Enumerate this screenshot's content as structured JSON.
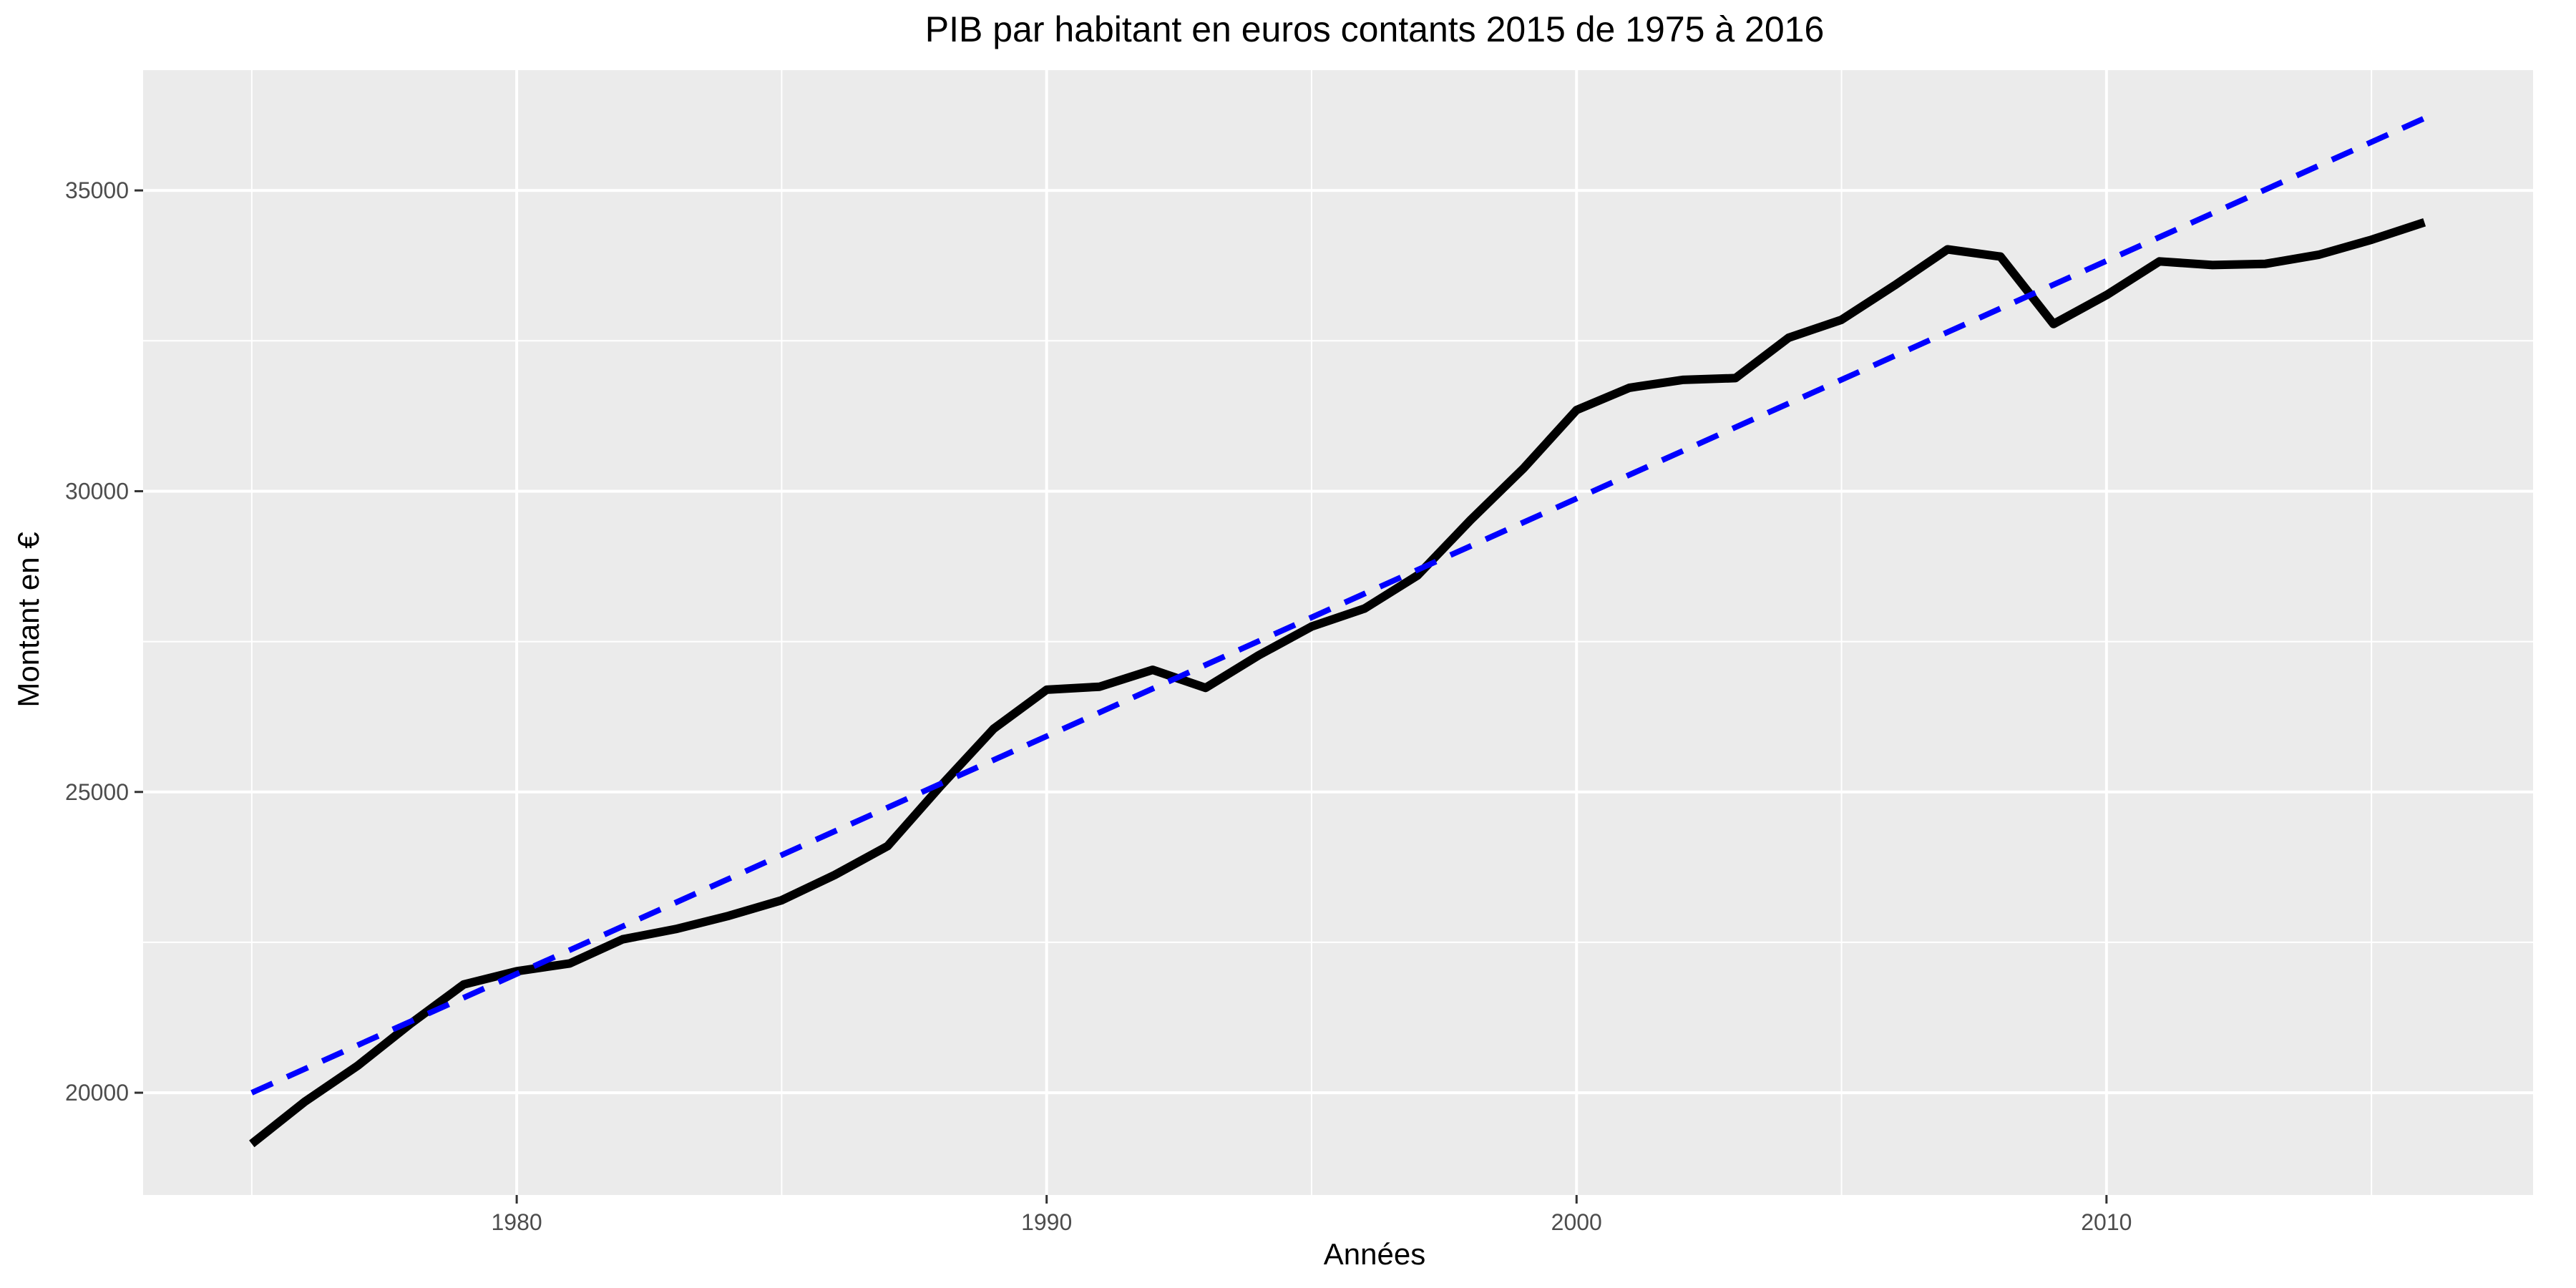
{
  "chart_data": {
    "type": "line",
    "title": "PIB par habitant en euros contants 2015 de 1975 à 2016",
    "xlabel": "Années",
    "ylabel": "Montant en €",
    "xlim": [
      1972.95,
      2018.05
    ],
    "ylim": [
      18300,
      37000
    ],
    "x_ticks": [
      1980,
      1990,
      2000,
      2010
    ],
    "y_ticks": [
      20000,
      25000,
      30000,
      35000
    ],
    "x_tick_labels": [
      "1980",
      "1990",
      "2000",
      "2010"
    ],
    "y_tick_labels": [
      "20000",
      "25000",
      "30000",
      "35000"
    ],
    "grid": true,
    "legend": "none",
    "colors": {
      "panel_background": "#ebebeb",
      "grid": "#ffffff",
      "observed_series": "#000000",
      "trend_series": "#0000ff",
      "tick_label": "#4d4d4d",
      "tick_mark": "#333333"
    },
    "series": [
      {
        "style": "solid",
        "color": "#000000",
        "x": [
          1975,
          1976,
          1977,
          1978,
          1979,
          1980,
          1981,
          1982,
          1983,
          1984,
          1985,
          1986,
          1987,
          1988,
          1989,
          1990,
          1991,
          1992,
          1993,
          1994,
          1995,
          1996,
          1997,
          1998,
          1999,
          2000,
          2001,
          2002,
          2003,
          2004,
          2005,
          2006,
          2007,
          2008,
          2009,
          2010,
          2011,
          2012,
          2013,
          2014,
          2015,
          2016
        ],
        "values": [
          19150,
          19850,
          20450,
          21150,
          21800,
          22020,
          22150,
          22550,
          22720,
          22940,
          23200,
          23620,
          24100,
          25100,
          26050,
          26700,
          26750,
          27030,
          26730,
          27270,
          27750,
          28050,
          28600,
          29520,
          30380,
          31350,
          31720,
          31850,
          31880,
          32550,
          32850,
          33420,
          34020,
          33900,
          32780,
          33260,
          33820,
          33760,
          33780,
          33930,
          34180,
          34470
        ]
      },
      {
        "style": "dashed",
        "color": "#0000ff",
        "x": [
          1975,
          2016
        ],
        "values": [
          20000,
          36200
        ]
      }
    ]
  }
}
